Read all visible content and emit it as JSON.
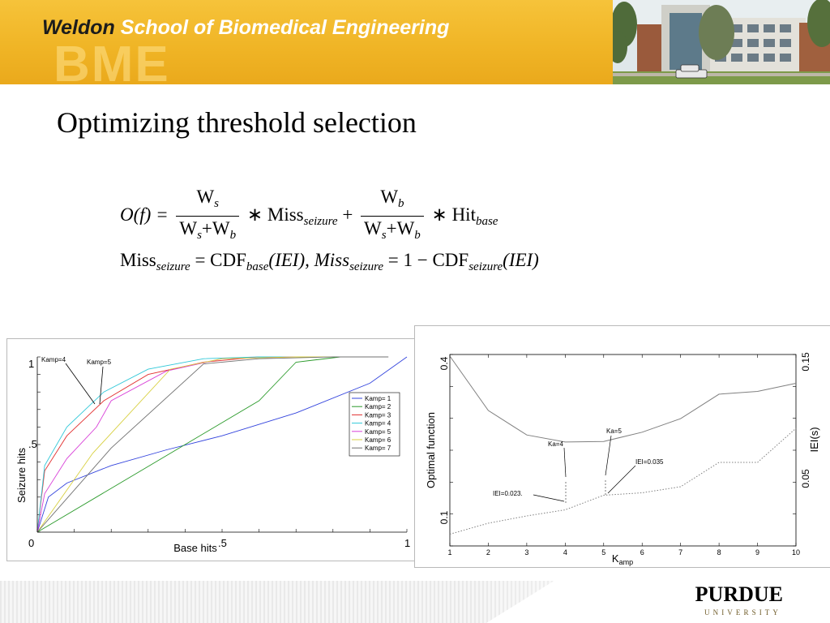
{
  "header": {
    "title_weldon": "Weldon",
    "title_rest": "School of Biomedical Engineering",
    "watermark": "BME"
  },
  "slide": {
    "title": "Optimizing threshold selection"
  },
  "equations": {
    "line1": {
      "lhs": "O(f) =",
      "frac1_num_main": "W",
      "frac1_num_sub": "s",
      "frac1_den": "W",
      "frac1_den_sub1": "s",
      "frac1_den_mid": "+W",
      "frac1_den_sub2": "b",
      "op1": "∗ Miss",
      "op1_sub": "seizure",
      "plus": "+",
      "frac2_num_main": "W",
      "frac2_num_sub": "b",
      "frac2_den": "W",
      "frac2_den_sub1": "s",
      "frac2_den_mid": "+W",
      "frac2_den_sub2": "b",
      "op2": "∗ Hit",
      "op2_sub": "base"
    },
    "line2": {
      "a": "Miss",
      "a_sub": "seizure",
      "b": " = CDF",
      "b_sub": "base",
      "c": "(IEI), Miss",
      "c_sub": "seizure",
      "d": " = 1 − CDF",
      "d_sub": "seizure",
      "e": "(IEI)"
    }
  },
  "chart_data": [
    {
      "type": "line",
      "xlabel": "Base hits",
      "ylabel": "Seizure hits",
      "xlim": [
        0,
        1
      ],
      "ylim": [
        0,
        1
      ],
      "xticks": [
        "0",
        ".5",
        "1"
      ],
      "yticks": [
        "0",
        ".5",
        "1"
      ],
      "legend_position": "right",
      "series": [
        {
          "name": "Kamp= 1",
          "color": "#3344dd",
          "x": [
            0,
            0.03,
            0.08,
            0.2,
            0.35,
            0.5,
            0.7,
            0.9,
            1.0
          ],
          "y": [
            0,
            0.2,
            0.28,
            0.38,
            0.47,
            0.55,
            0.68,
            0.85,
            1.0
          ]
        },
        {
          "name": "Kamp= 2",
          "color": "#2a9a2a",
          "x": [
            0,
            0.2,
            0.4,
            0.6,
            0.7,
            0.82,
            0.92
          ],
          "y": [
            0,
            0.25,
            0.5,
            0.75,
            0.97,
            1.0,
            1.0
          ]
        },
        {
          "name": "Kamp= 3",
          "color": "#e23030",
          "x": [
            0,
            0.02,
            0.08,
            0.18,
            0.3,
            0.45,
            0.6,
            0.75,
            0.9
          ],
          "y": [
            0,
            0.35,
            0.55,
            0.75,
            0.9,
            0.97,
            1.0,
            1.0,
            1.0
          ]
        },
        {
          "name": "Kamp= 4",
          "color": "#30c8d8",
          "x": [
            0,
            0.02,
            0.08,
            0.18,
            0.3,
            0.45,
            0.6,
            0.8
          ],
          "y": [
            0,
            0.38,
            0.6,
            0.8,
            0.93,
            0.99,
            1.0,
            1.0
          ]
        },
        {
          "name": "Kamp= 5",
          "color": "#d840d8",
          "x": [
            0,
            0.02,
            0.08,
            0.16,
            0.2,
            0.35,
            0.5,
            0.7
          ],
          "y": [
            0,
            0.22,
            0.42,
            0.6,
            0.75,
            0.92,
            0.99,
            1.0
          ]
        },
        {
          "name": "Kamp= 6",
          "color": "#d8d040",
          "x": [
            0,
            0.15,
            0.36,
            0.5,
            0.7,
            0.88
          ],
          "y": [
            0,
            0.45,
            0.93,
            0.99,
            1.0,
            1.0
          ]
        },
        {
          "name": "Kamp= 7",
          "color": "#707070",
          "x": [
            0,
            0.2,
            0.45,
            0.6,
            0.8,
            0.95
          ],
          "y": [
            0,
            0.48,
            0.96,
            0.99,
            1.0,
            1.0
          ]
        }
      ],
      "annotations": [
        {
          "text": "Kamp=4"
        },
        {
          "text": "Kamp=5"
        }
      ]
    },
    {
      "type": "line",
      "xlabel": "K",
      "xlabel_sub": "amp",
      "ylabel_left": "Optimal function",
      "ylabel_right": "IEI(s)",
      "x": [
        1,
        2,
        3,
        4,
        5,
        6,
        7,
        8,
        9,
        10
      ],
      "xticks": [
        "1",
        "2",
        "3",
        "4",
        "5",
        "6",
        "7",
        "8",
        "9",
        "10"
      ],
      "yticks_left": [
        "0.1",
        "0.4"
      ],
      "yticks_right": [
        "0.05",
        "0.15"
      ],
      "ylim_left": [
        0.1,
        0.4
      ],
      "ylim_right": [
        0.0,
        0.15
      ],
      "series": [
        {
          "name": "Optimal function",
          "axis": "left",
          "color": "#808080",
          "values": [
            0.4,
            0.3,
            0.255,
            0.242,
            0.243,
            0.26,
            0.285,
            0.33,
            0.335,
            0.35
          ]
        },
        {
          "name": "IEI(s)",
          "axis": "right",
          "color": "#808080",
          "dotted": true,
          "values": [
            0.003,
            0.012,
            0.018,
            0.023,
            0.035,
            0.037,
            0.042,
            0.062,
            0.062,
            0.09
          ]
        }
      ],
      "annotations": [
        {
          "text": "Ka=4"
        },
        {
          "text": "Ka=5"
        },
        {
          "text": "IEI=0.023."
        },
        {
          "text": "IEI=0.035"
        }
      ]
    }
  ],
  "footer": {
    "brand": "PURDUE",
    "sub": "UNIVERSITY"
  }
}
